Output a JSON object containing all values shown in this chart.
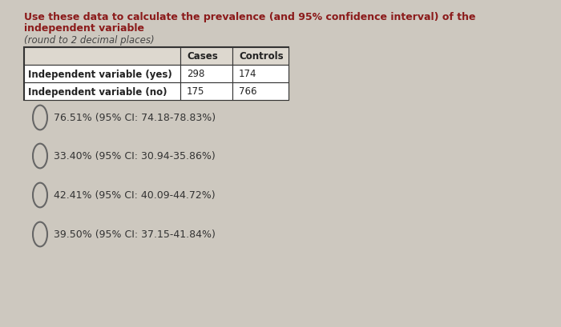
{
  "title_line1": "Use these data to calculate the prevalence (and 95% confidence interval) of the",
  "title_line2": "independent variable",
  "subtitle": "(round to 2 decimal places)",
  "title_color": "#8B1a1a",
  "subtitle_color": "#444444",
  "table_headers": [
    "",
    "Cases",
    "Controls"
  ],
  "table_row1": [
    "Independent variable (yes)",
    "298",
    "174"
  ],
  "table_row2": [
    "Independent variable (no)",
    "175",
    "766"
  ],
  "options": [
    "76.51% (95% CI: 74.18-78.83%)",
    "33.40% (95% CI: 30.94-35.86%)",
    "42.41% (95% CI: 40.09-44.72%)",
    "39.50% (95% CI: 37.15-41.84%)"
  ],
  "bg_color": "#cdc8bf",
  "text_color": "#222222",
  "option_text_color": "#333333",
  "font_size_title": 9.0,
  "font_size_subtitle": 8.5,
  "font_size_table": 8.5,
  "font_size_options": 9.0
}
